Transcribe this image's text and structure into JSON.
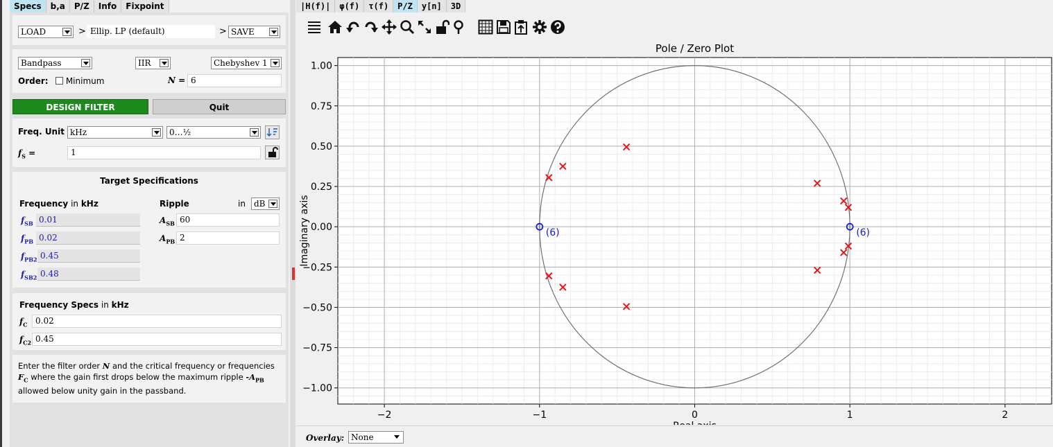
{
  "left_tabs": [
    "Specs",
    "b,a",
    "P/Z",
    "Info",
    "Fixpoint"
  ],
  "right_tabs": [
    "|H(f)|",
    "φ(f)",
    "τ(f)",
    "P/Z",
    "y[n]",
    "3D"
  ],
  "load_save": {
    "load_label": "LOAD",
    "current_filter": "Ellip. LP (default)",
    "save_label": "SAVE",
    "sep": ">"
  },
  "filter_type": {
    "response": "Bandpass",
    "class": "IIR",
    "design": "Chebyshev 1",
    "order_label": "Order:",
    "minimum_label": "Minimum",
    "n_label": "N =",
    "n_value": "6"
  },
  "buttons": {
    "design": "DESIGN FILTER",
    "quit": "Quit"
  },
  "freq_unit": {
    "label": "Freq. Unit",
    "unit": "kHz",
    "range": "0…½",
    "fs_label": "f",
    "fs_sub": "S",
    "fs_eq": " =",
    "fs_value": "1"
  },
  "target_specs": {
    "title": "Target Specifications",
    "freq_header": "Frequency",
    "freq_header_in": " in ",
    "freq_unit": "kHz",
    "ripple_header": "Ripple",
    "ripple_in": "in",
    "ripple_unit": "dB",
    "freqs": [
      {
        "sym": "f",
        "sub": "SB",
        "value": "0.01"
      },
      {
        "sym": "f",
        "sub": "PB",
        "value": "0.02"
      },
      {
        "sym": "f",
        "sub": "PB2",
        "value": "0.45"
      },
      {
        "sym": "f",
        "sub": "SB2",
        "value": "0.48"
      }
    ],
    "amps": [
      {
        "sym": "A",
        "sub": "SB",
        "value": "60"
      },
      {
        "sym": "A",
        "sub": "PB",
        "value": "2"
      }
    ]
  },
  "freq_specs": {
    "title": "Frequency Specs",
    "in": " in ",
    "unit": "kHz",
    "rows": [
      {
        "sym": "f",
        "sub": "C",
        "value": "0.02"
      },
      {
        "sym": "f",
        "sub": "C2",
        "value": "0.45"
      }
    ]
  },
  "help_text": {
    "p1": "Enter the filter order ",
    "n": "N",
    "p2": " and the critical frequency or frequencies ",
    "fc": "F",
    "fc_sub": "C",
    "p3": " where the gain first drops below the maximum ripple ",
    "apb": "-A",
    "apb_sub": "PB",
    "p4": " allowed below unity gain in the passband."
  },
  "overlay": {
    "label": "Overlay:",
    "value": "None"
  },
  "toolbar_icons": [
    "menu-icon",
    "home-icon",
    "undo-icon",
    "redo-icon",
    "pan-icon",
    "zoom-icon",
    "zoom-full-icon",
    "lock-icon",
    "marker-icon",
    "grid-icon",
    "save-icon",
    "clipboard-icon",
    "settings-icon",
    "help-icon"
  ],
  "chart_data": {
    "type": "scatter",
    "title": "Pole / Zero Plot",
    "xlabel": "Real axis",
    "ylabel": "Imaginary axis",
    "xlim": [
      -2.3,
      2.3
    ],
    "ylim": [
      -1.1,
      1.05
    ],
    "xticks": [
      -2,
      -1,
      0,
      1,
      2
    ],
    "xtick_labels": [
      "−2",
      "−1",
      "0",
      "1",
      "2"
    ],
    "yticks": [
      1.0,
      0.75,
      0.5,
      0.25,
      0.0,
      -0.25,
      -0.5,
      -0.75,
      -1.0
    ],
    "ytick_labels": [
      "1.00",
      "0.75",
      "0.50",
      "0.25",
      "0.00",
      "−0.25",
      "−0.50",
      "−0.75",
      "−1.00"
    ],
    "grid": true,
    "unit_circle": true,
    "series": [
      {
        "marker": "x",
        "color": "#e8141c",
        "points": [
          {
            "x": -0.44,
            "y": 0.495
          },
          {
            "x": -0.44,
            "y": -0.495
          },
          {
            "x": -0.85,
            "y": 0.375
          },
          {
            "x": -0.85,
            "y": -0.375
          },
          {
            "x": -0.94,
            "y": 0.305
          },
          {
            "x": -0.94,
            "y": -0.305
          },
          {
            "x": 0.79,
            "y": 0.27
          },
          {
            "x": 0.79,
            "y": -0.27
          },
          {
            "x": 0.96,
            "y": 0.16
          },
          {
            "x": 0.96,
            "y": -0.16
          },
          {
            "x": 0.99,
            "y": 0.12
          },
          {
            "x": 0.99,
            "y": -0.12
          }
        ]
      },
      {
        "marker": "o",
        "color": "#1020d8",
        "points": [
          {
            "x": -1.0,
            "y": 0.0,
            "label": "(6)"
          },
          {
            "x": 1.0,
            "y": 0.0,
            "label": "(6)"
          }
        ]
      }
    ]
  }
}
